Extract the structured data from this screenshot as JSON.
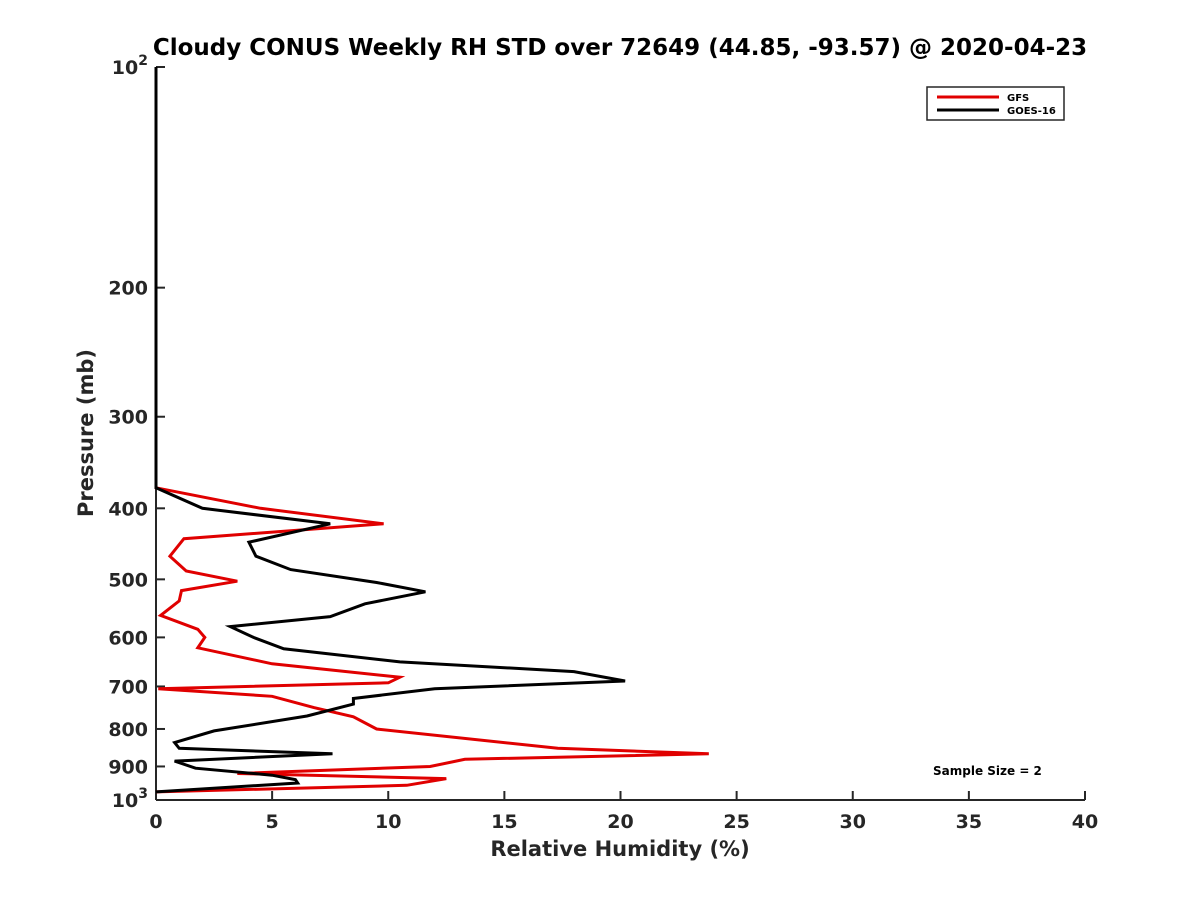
{
  "chart_data": {
    "type": "line",
    "title": "Cloudy CONUS Weekly RH STD over 72649 (44.85, -93.57) @ 2020-04-23",
    "xlabel": "Relative Humidity (%)",
    "ylabel": "Pressure (mb)",
    "xlim": [
      0,
      40
    ],
    "ylim": [
      100,
      1000
    ],
    "yscale": "log",
    "y_reversed": true,
    "x_ticks": [
      0,
      5,
      10,
      15,
      20,
      25,
      30,
      35,
      40
    ],
    "y_ticks": [
      {
        "value": 100,
        "label": "10",
        "sup": "2"
      },
      {
        "value": 200,
        "label": "200",
        "sup": ""
      },
      {
        "value": 300,
        "label": "300",
        "sup": ""
      },
      {
        "value": 400,
        "label": "400",
        "sup": ""
      },
      {
        "value": 500,
        "label": "500",
        "sup": ""
      },
      {
        "value": 600,
        "label": "600",
        "sup": ""
      },
      {
        "value": 700,
        "label": "700",
        "sup": ""
      },
      {
        "value": 800,
        "label": "800",
        "sup": ""
      },
      {
        "value": 900,
        "label": "900",
        "sup": ""
      },
      {
        "value": 1000,
        "label": "10",
        "sup": "3"
      }
    ],
    "grid": false,
    "legend_position": "top-right",
    "series": [
      {
        "name": "GFS",
        "color": "#e00000",
        "points": [
          [
            0,
            100
          ],
          [
            0,
            375
          ],
          [
            4.5,
            400
          ],
          [
            9.8,
            420
          ],
          [
            1.2,
            440
          ],
          [
            0.6,
            465
          ],
          [
            1.3,
            487
          ],
          [
            3.5,
            503
          ],
          [
            1.1,
            518
          ],
          [
            1.0,
            535
          ],
          [
            0.2,
            560
          ],
          [
            1.8,
            585
          ],
          [
            2.1,
            600
          ],
          [
            1.8,
            620
          ],
          [
            5.0,
            652
          ],
          [
            10.5,
            680
          ],
          [
            10.0,
            692
          ],
          [
            0.1,
            705
          ],
          [
            5.0,
            722
          ],
          [
            6.8,
            748
          ],
          [
            8.5,
            770
          ],
          [
            9.5,
            800
          ],
          [
            17.3,
            850
          ],
          [
            23.8,
            865
          ],
          [
            13.3,
            880
          ],
          [
            11.8,
            900
          ],
          [
            3.5,
            920
          ],
          [
            12.5,
            935
          ],
          [
            10.8,
            955
          ],
          [
            0,
            975
          ]
        ]
      },
      {
        "name": "GOES-16",
        "color": "#000000",
        "points": [
          [
            0,
            100
          ],
          [
            0,
            375
          ],
          [
            2.0,
            400
          ],
          [
            7.5,
            420
          ],
          [
            4.0,
            445
          ],
          [
            4.3,
            465
          ],
          [
            5.8,
            485
          ],
          [
            9.5,
            505
          ],
          [
            11.6,
            520
          ],
          [
            9.0,
            540
          ],
          [
            7.5,
            562
          ],
          [
            3.2,
            580
          ],
          [
            4.2,
            600
          ],
          [
            5.5,
            622
          ],
          [
            10.5,
            648
          ],
          [
            18.0,
            668
          ],
          [
            20.2,
            688
          ],
          [
            12.0,
            705
          ],
          [
            8.5,
            727
          ],
          [
            8.5,
            740
          ],
          [
            6.5,
            768
          ],
          [
            2.5,
            805
          ],
          [
            0.8,
            835
          ],
          [
            1.0,
            850
          ],
          [
            7.6,
            865
          ],
          [
            0.8,
            885
          ],
          [
            1.7,
            905
          ],
          [
            5.0,
            925
          ],
          [
            6.0,
            938
          ],
          [
            6.1,
            948
          ],
          [
            0,
            975
          ]
        ]
      }
    ],
    "annotations": [
      {
        "text": "Sample Size = 2",
        "x": 35.8,
        "y": 910
      }
    ]
  }
}
